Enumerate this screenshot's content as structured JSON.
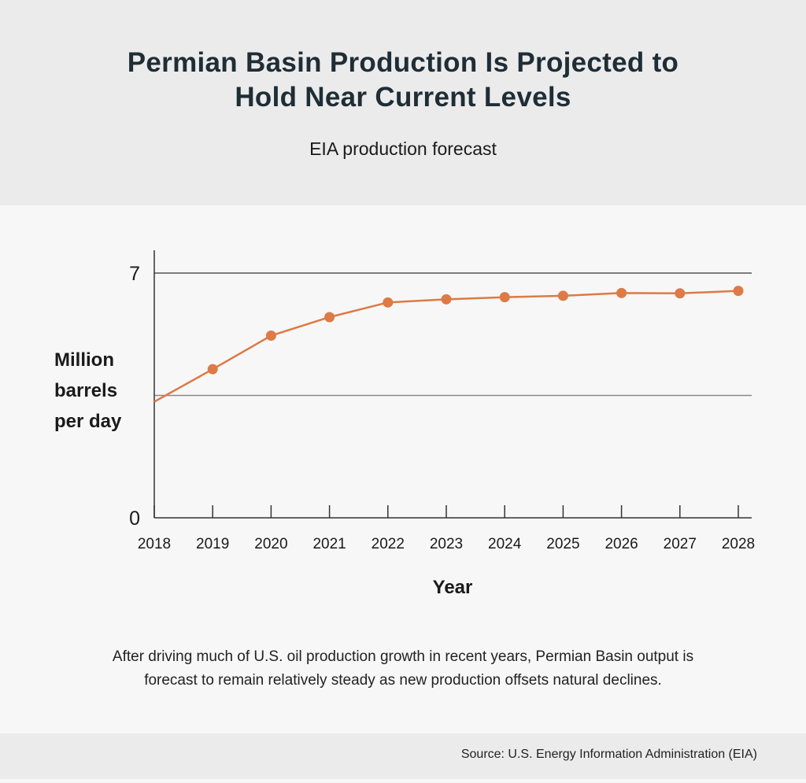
{
  "title_lines": [
    "Permian Basin Production Is Projected to",
    "Hold Near Current Levels"
  ],
  "subtitle": "EIA production forecast",
  "caption_lines": [
    "After driving much of U.S. oil production growth in recent years, Permian Basin output is",
    "forecast to remain relatively steady as new production offsets natural declines."
  ],
  "source": "Source: U.S. Energy Information Administration (EIA)",
  "chart_data": {
    "type": "line",
    "title": "Permian Basin Production Is Projected to Hold Near Current Levels",
    "subtitle": "EIA production forecast",
    "xlabel": "Year",
    "ylabel_lines": [
      "Million",
      "barrels",
      "per day"
    ],
    "x": [
      "2018",
      "2019",
      "2020",
      "2021",
      "2022",
      "2023",
      "2024",
      "2025",
      "2026",
      "2027",
      "2028"
    ],
    "values": [
      3.32,
      4.25,
      5.21,
      5.74,
      6.16,
      6.25,
      6.31,
      6.35,
      6.43,
      6.42,
      6.49
    ],
    "ylim": [
      0,
      7
    ],
    "yticks": [
      "0",
      "7"
    ],
    "gridlines": [
      3.5,
      7
    ],
    "grid": true,
    "legend": "none",
    "line_color": "#dd7a45"
  }
}
